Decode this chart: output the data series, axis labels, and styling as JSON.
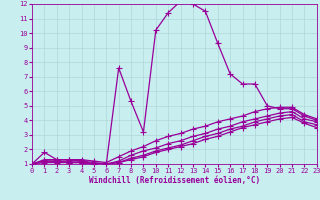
{
  "xlabel": "Windchill (Refroidissement éolien,°C)",
  "bg_color": "#c8eef0",
  "grid_color": "#b0d8d8",
  "line_color": "#990099",
  "xlim": [
    0,
    23
  ],
  "ylim": [
    1,
    12
  ],
  "xticks": [
    0,
    1,
    2,
    3,
    4,
    5,
    6,
    7,
    8,
    9,
    10,
    11,
    12,
    13,
    14,
    15,
    16,
    17,
    18,
    19,
    20,
    21,
    22,
    23
  ],
  "yticks": [
    1,
    2,
    3,
    4,
    5,
    6,
    7,
    8,
    9,
    10,
    11,
    12
  ],
  "lines": [
    {
      "x": [
        0,
        1,
        2,
        3,
        4,
        5,
        6,
        7,
        8,
        9,
        10,
        11,
        12,
        13,
        14,
        15,
        16,
        17,
        18,
        19,
        20,
        21,
        22,
        23
      ],
      "y": [
        1.0,
        1.8,
        1.3,
        1.3,
        1.2,
        1.0,
        1.0,
        7.6,
        5.3,
        3.2,
        10.2,
        11.4,
        12.2,
        12.0,
        11.5,
        9.3,
        7.2,
        6.5,
        6.5,
        5.0,
        4.8,
        4.8,
        4.3,
        4.0
      ]
    },
    {
      "x": [
        0,
        1,
        2,
        3,
        4,
        5,
        6,
        7,
        8,
        9,
        10,
        11,
        12,
        13,
        14,
        15,
        16,
        17,
        18,
        19,
        20,
        21,
        22,
        23
      ],
      "y": [
        1.0,
        1.3,
        1.3,
        1.3,
        1.3,
        1.2,
        1.1,
        1.5,
        1.9,
        2.2,
        2.6,
        2.9,
        3.1,
        3.4,
        3.6,
        3.9,
        4.1,
        4.3,
        4.6,
        4.8,
        4.9,
        4.9,
        4.4,
        4.1
      ]
    },
    {
      "x": [
        0,
        1,
        2,
        3,
        4,
        5,
        6,
        7,
        8,
        9,
        10,
        11,
        12,
        13,
        14,
        15,
        16,
        17,
        18,
        19,
        20,
        21,
        22,
        23
      ],
      "y": [
        1.0,
        1.2,
        1.2,
        1.2,
        1.2,
        1.1,
        1.0,
        1.2,
        1.6,
        1.9,
        2.1,
        2.4,
        2.6,
        2.9,
        3.1,
        3.4,
        3.6,
        3.9,
        4.1,
        4.3,
        4.5,
        4.6,
        4.1,
        3.9
      ]
    },
    {
      "x": [
        0,
        1,
        2,
        3,
        4,
        5,
        6,
        7,
        8,
        9,
        10,
        11,
        12,
        13,
        14,
        15,
        16,
        17,
        18,
        19,
        20,
        21,
        22,
        23
      ],
      "y": [
        1.0,
        1.2,
        1.2,
        1.1,
        1.1,
        1.0,
        1.0,
        1.1,
        1.4,
        1.6,
        1.9,
        2.1,
        2.3,
        2.6,
        2.9,
        3.1,
        3.4,
        3.6,
        3.9,
        4.1,
        4.3,
        4.4,
        3.9,
        3.7
      ]
    },
    {
      "x": [
        0,
        1,
        2,
        3,
        4,
        5,
        6,
        7,
        8,
        9,
        10,
        11,
        12,
        13,
        14,
        15,
        16,
        17,
        18,
        19,
        20,
        21,
        22,
        23
      ],
      "y": [
        1.0,
        1.1,
        1.1,
        1.1,
        1.1,
        1.0,
        1.0,
        1.1,
        1.3,
        1.5,
        1.8,
        2.0,
        2.2,
        2.4,
        2.7,
        2.9,
        3.2,
        3.5,
        3.7,
        3.9,
        4.1,
        4.2,
        3.8,
        3.5
      ]
    }
  ],
  "marker": "+",
  "markersize": 4,
  "linewidth": 0.9,
  "label_fontsize": 5.5,
  "tick_fontsize": 5
}
